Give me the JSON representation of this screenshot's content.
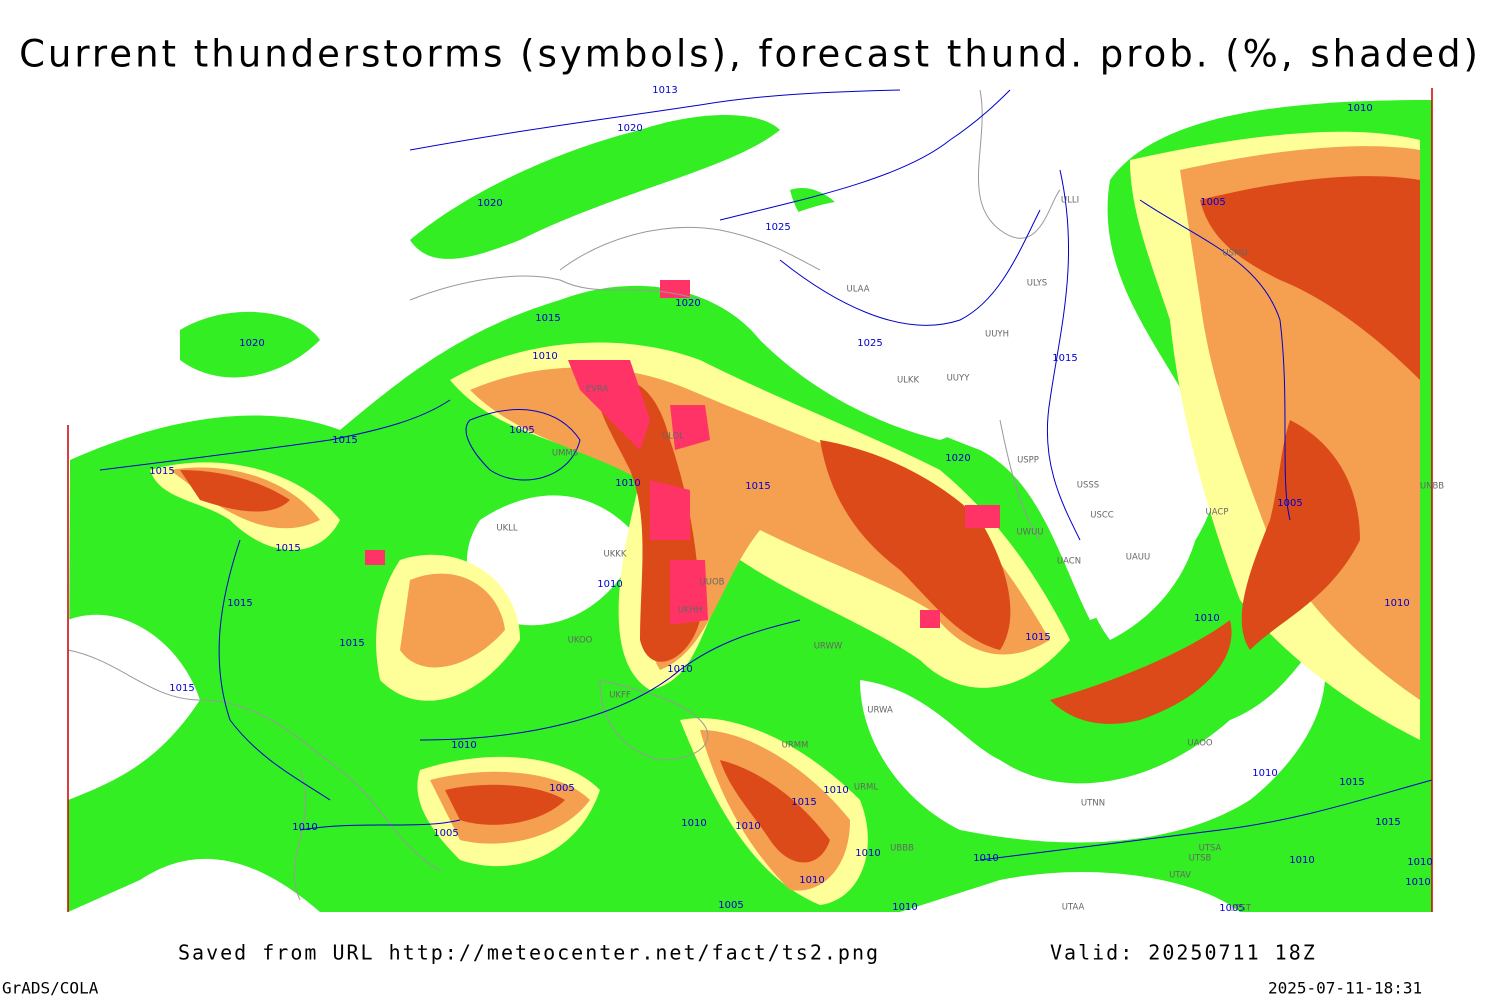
{
  "header": {
    "title": "Current thunderstorms (symbols), forecast thund. prob. (%, shaded)"
  },
  "map": {
    "isobar_labels": [
      "1013",
      "1020",
      "1020",
      "1025",
      "1020",
      "1015",
      "1020",
      "1025",
      "1010",
      "1015",
      "1005",
      "1015",
      "1015",
      "1020",
      "1015",
      "1010",
      "1005",
      "1015",
      "1015",
      "1010",
      "1015",
      "1015",
      "1010",
      "1010",
      "1010",
      "1015",
      "1010",
      "1005",
      "1010",
      "1015",
      "1010",
      "1015",
      "1010",
      "1005",
      "1010",
      "1010",
      "1010",
      "1010",
      "1015",
      "1010",
      "1010",
      "1010",
      "1010",
      "1005",
      "1010",
      "1005",
      "1010",
      "1005"
    ],
    "stations": [
      "ULAA",
      "ULYS",
      "UUYH",
      "ULKK",
      "UUYY",
      "EVRA",
      "ULOL",
      "UMMS",
      "USPP",
      "USSS",
      "USCC",
      "UACP",
      "UAUU",
      "UACN",
      "UWUU",
      "UKKK",
      "UKLL",
      "UUOB",
      "UKHH",
      "UKOO",
      "UKFF",
      "URWW",
      "URWA",
      "URMM",
      "URML",
      "UBBB",
      "UTNN",
      "UAOO",
      "UTSA",
      "UTSB",
      "UTAV",
      "UTAA",
      "UTST",
      "USMU",
      "UNBB",
      "ULLI"
    ]
  },
  "footer": {
    "source": "Saved from URL http://meteocenter.net/fact/ts2.png",
    "valid": "Valid: 20250711 18Z",
    "software": "GrADS/COLA",
    "timestamp": "2025-07-11-18:31"
  }
}
